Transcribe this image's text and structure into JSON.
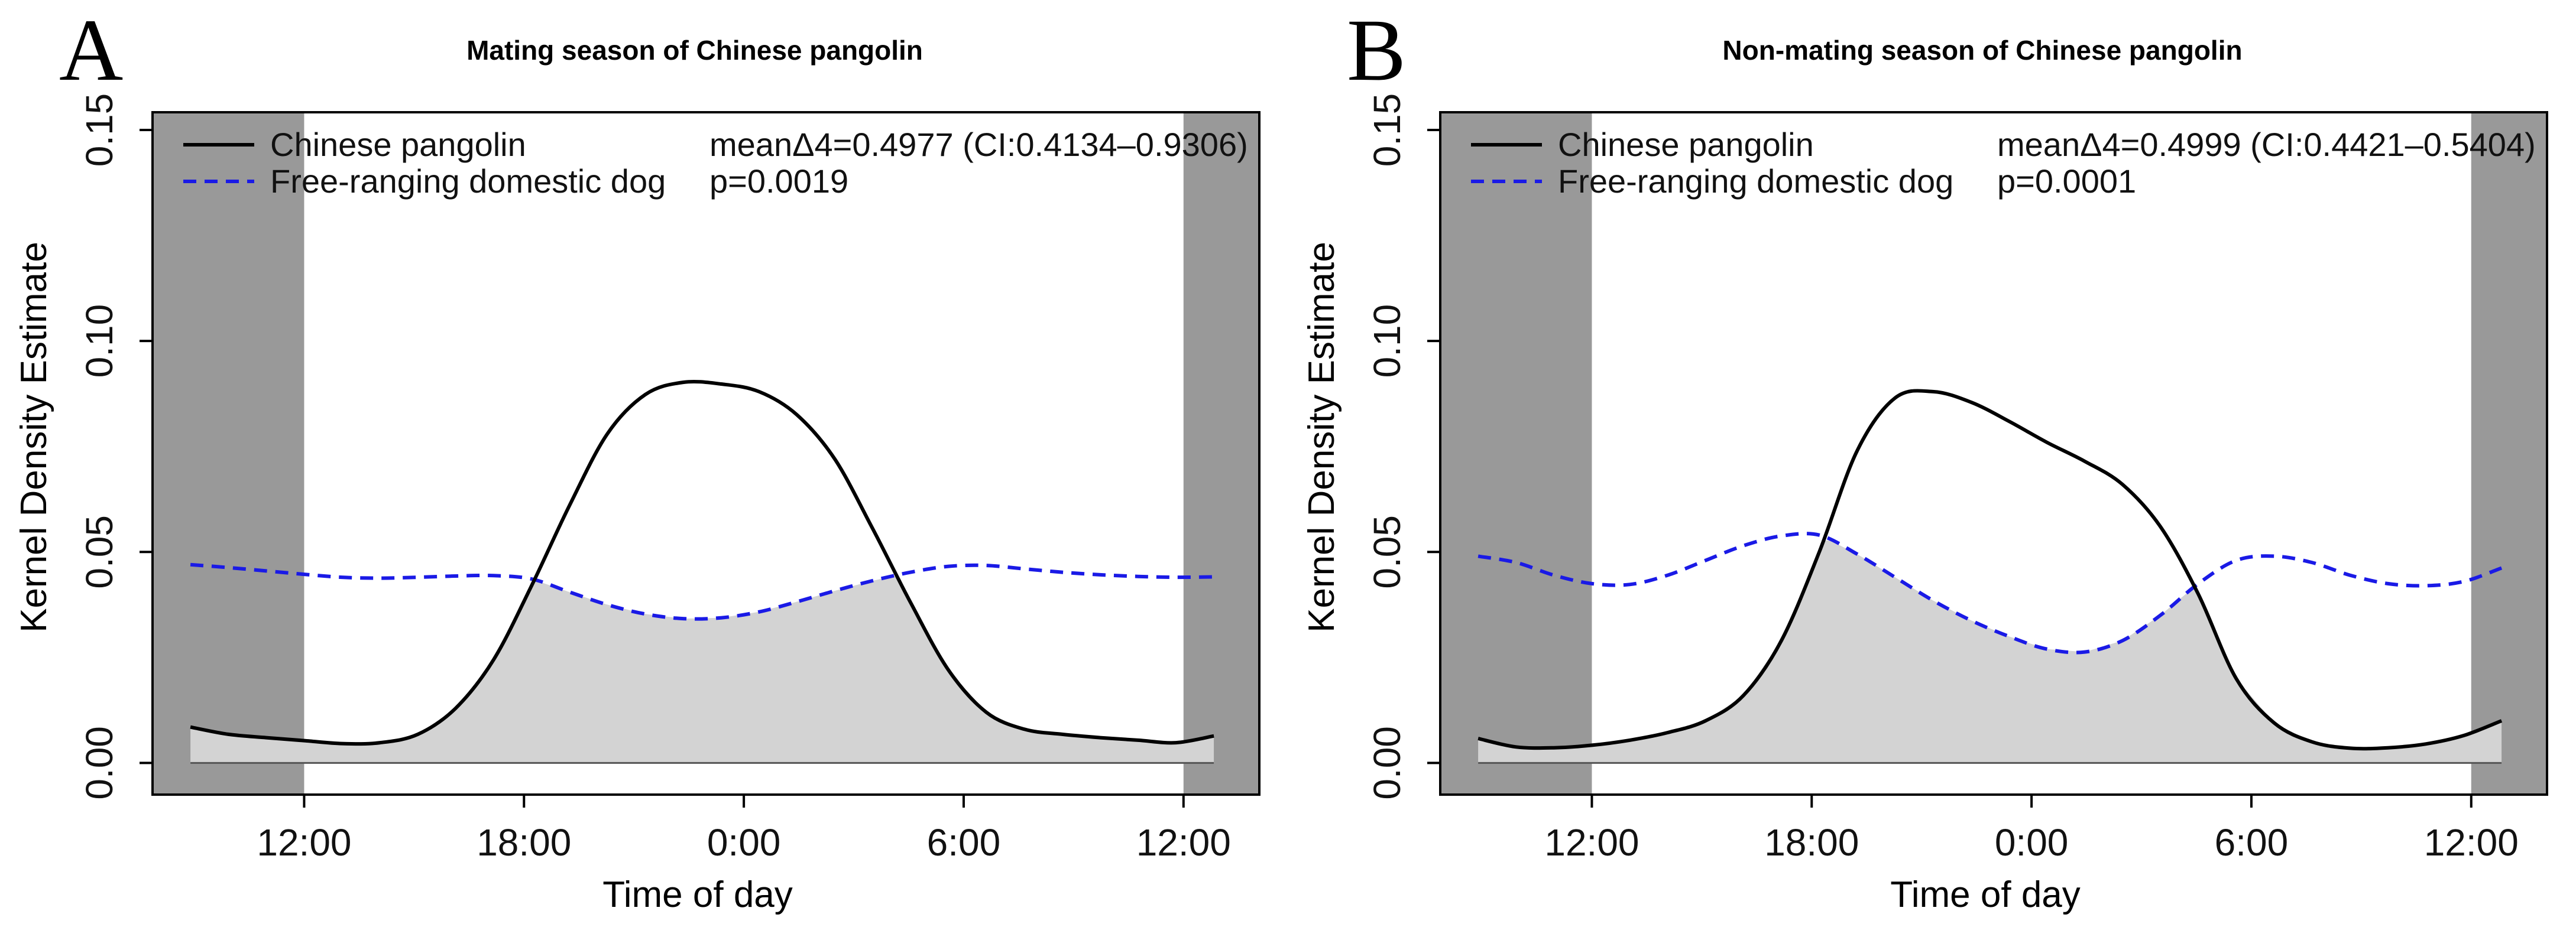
{
  "chart_data": [
    {
      "panel_letter": "A",
      "type": "line",
      "title": "Mating season of Chinese pangolin",
      "xlabel": "Time of day",
      "ylabel": "Kernel Density Estimate",
      "xlim": [
        -2.0,
        27.2
      ],
      "ylim": [
        -0.0075,
        0.1542
      ],
      "night_shading": [
        [
          -2.0,
          2.0
        ],
        [
          25.2,
          27.2
        ]
      ],
      "yticks": [
        0.0,
        0.05,
        0.1,
        0.15
      ],
      "ytick_labels": [
        "0.00",
        "0.05",
        "0.10",
        "0.15"
      ],
      "xticks": [
        2.0,
        7.8,
        13.6,
        19.4,
        25.2
      ],
      "xtick_labels": [
        "12:00",
        "18:00",
        "0:00",
        "6:00",
        "12:00"
      ],
      "legend": [
        {
          "label": "Chinese pangolin",
          "style": "solid",
          "color": "#000000"
        },
        {
          "label": "Free-ranging domestic dog",
          "style": "dashed",
          "color": "#1a1ae6"
        }
      ],
      "stat_line1": "meanΔ4=0.4977 (CI:0.4134–0.9306)",
      "stat_line2": "p=0.0019",
      "series": [
        {
          "name": "Chinese pangolin",
          "x": [
            -1.0,
            0.0,
            1.0,
            2.0,
            3.0,
            4.0,
            5.0,
            6.0,
            7.0,
            8.0,
            9.0,
            10.0,
            11.0,
            12.0,
            13.0,
            14.0,
            15.0,
            16.0,
            17.0,
            18.0,
            19.0,
            20.0,
            21.0,
            22.0,
            23.0,
            24.0,
            25.0,
            26.0
          ],
          "values": [
            0.0085,
            0.0068,
            0.006,
            0.0053,
            0.0046,
            0.0048,
            0.0068,
            0.013,
            0.0245,
            0.042,
            0.061,
            0.078,
            0.0873,
            0.0902,
            0.0898,
            0.088,
            0.0825,
            0.072,
            0.0555,
            0.038,
            0.022,
            0.012,
            0.008,
            0.0068,
            0.006,
            0.0054,
            0.0048,
            0.0064
          ]
        },
        {
          "name": "Free-ranging domestic dog",
          "x": [
            -1.0,
            0.0,
            1.0,
            2.0,
            3.0,
            4.0,
            5.0,
            6.0,
            7.0,
            8.0,
            9.0,
            10.0,
            11.0,
            12.0,
            13.0,
            14.0,
            15.0,
            16.0,
            17.0,
            18.0,
            19.0,
            20.0,
            21.0,
            22.0,
            23.0,
            24.0,
            25.0,
            26.0
          ],
          "values": [
            0.047,
            0.0463,
            0.0455,
            0.0447,
            0.044,
            0.0438,
            0.044,
            0.0443,
            0.0444,
            0.0436,
            0.0405,
            0.0375,
            0.0353,
            0.0342,
            0.0344,
            0.0358,
            0.0382,
            0.0408,
            0.0432,
            0.0452,
            0.0466,
            0.0468,
            0.046,
            0.0452,
            0.0446,
            0.0442,
            0.044,
            0.0441
          ]
        }
      ]
    },
    {
      "panel_letter": "B",
      "type": "line",
      "title": "Non-mating season of Chinese pangolin",
      "xlabel": "Time of day",
      "ylabel": "Kernel Density Estimate",
      "xlim": [
        -2.0,
        27.2
      ],
      "ylim": [
        -0.0075,
        0.1542
      ],
      "night_shading": [
        [
          -2.0,
          2.0
        ],
        [
          25.2,
          27.2
        ]
      ],
      "yticks": [
        0.0,
        0.05,
        0.1,
        0.15
      ],
      "ytick_labels": [
        "0.00",
        "0.05",
        "0.10",
        "0.15"
      ],
      "xticks": [
        2.0,
        7.8,
        13.6,
        19.4,
        25.2
      ],
      "xtick_labels": [
        "12:00",
        "18:00",
        "0:00",
        "6:00",
        "12:00"
      ],
      "legend": [
        {
          "label": "Chinese pangolin",
          "style": "solid",
          "color": "#000000"
        },
        {
          "label": "Free-ranging domestic dog",
          "style": "dashed",
          "color": "#1a1ae6"
        }
      ],
      "stat_line1": "meanΔ4=0.4999 (CI:0.4421–0.5404)",
      "stat_line2": "p=0.0001",
      "series": [
        {
          "name": "Chinese pangolin",
          "x": [
            -1.0,
            0.0,
            1.0,
            2.0,
            3.0,
            4.0,
            5.0,
            6.0,
            7.0,
            8.0,
            9.0,
            10.0,
            11.0,
            12.0,
            13.0,
            14.0,
            15.0,
            16.0,
            17.0,
            18.0,
            19.0,
            20.0,
            21.0,
            22.0,
            23.0,
            24.0,
            25.0,
            26.0
          ],
          "values": [
            0.0058,
            0.0038,
            0.0036,
            0.0042,
            0.0054,
            0.0072,
            0.01,
            0.016,
            0.029,
            0.05,
            0.074,
            0.0865,
            0.088,
            0.0855,
            0.081,
            0.076,
            0.0715,
            0.066,
            0.056,
            0.04,
            0.02,
            0.0095,
            0.005,
            0.0035,
            0.0036,
            0.0045,
            0.0065,
            0.01
          ]
        },
        {
          "name": "Free-ranging domestic dog",
          "x": [
            -1.0,
            0.0,
            1.0,
            2.0,
            3.0,
            4.0,
            5.0,
            6.0,
            7.0,
            8.0,
            9.0,
            10.0,
            11.0,
            12.0,
            13.0,
            14.0,
            15.0,
            16.0,
            17.0,
            18.0,
            19.0,
            20.0,
            21.0,
            22.0,
            23.0,
            24.0,
            25.0,
            26.0
          ],
          "values": [
            0.049,
            0.0475,
            0.0445,
            0.0425,
            0.0423,
            0.0445,
            0.048,
            0.0515,
            0.0538,
            0.054,
            0.0495,
            0.044,
            0.0385,
            0.0338,
            0.03,
            0.027,
            0.0263,
            0.029,
            0.035,
            0.0425,
            0.048,
            0.049,
            0.0475,
            0.0445,
            0.0425,
            0.042,
            0.043,
            0.0462
          ]
        }
      ]
    }
  ]
}
